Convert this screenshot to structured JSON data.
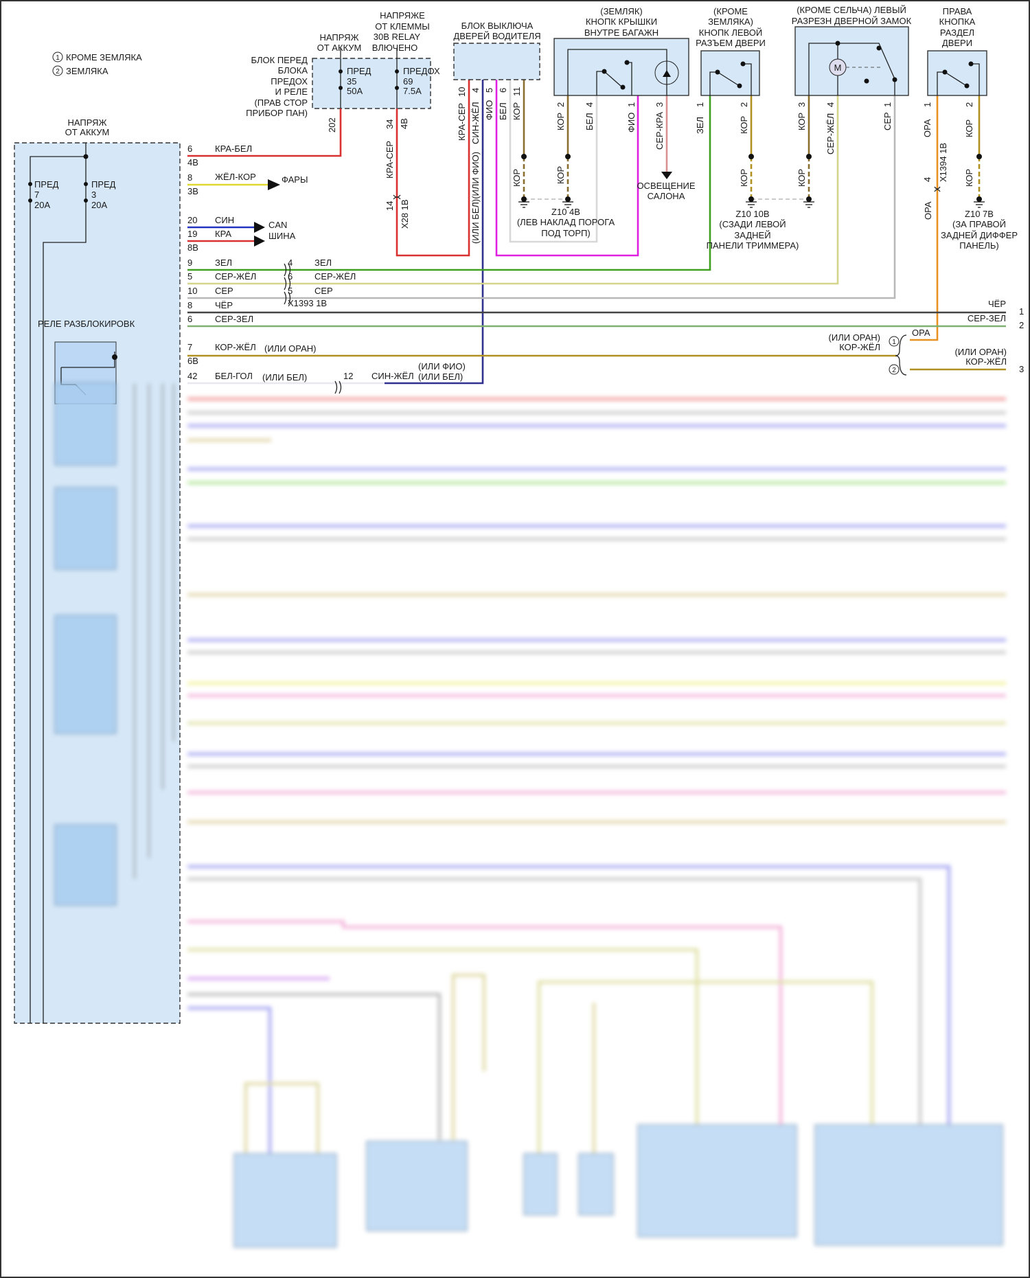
{
  "legend": {
    "n1": "1",
    "note1": "КРОМЕ ЗЕМЛЯКА",
    "n2": "2",
    "note2": "ЗЕМЛЯКА"
  },
  "battery_feed": [
    "НАПРЯЖ",
    "ОТ АККУМ"
  ],
  "body_module": {
    "fuse_a": [
      "ПРЕД",
      "7",
      "20А"
    ],
    "fuse_b": [
      "ПРЕД",
      "3",
      "20А"
    ],
    "relay_title": "РЕЛЕ РАЗБЛОКИРОВК"
  },
  "fuse_block": {
    "label": [
      "БЛОК ПЕРЕД",
      "БЛОКА",
      "ПРЕДОХ",
      "И РЕЛЕ",
      "(ПРАВ СТОР",
      "ПРИБОР ПАН)"
    ],
    "feed1": [
      "НАПРЯЖ",
      "ОТ АККУМ"
    ],
    "feed2": [
      "НАПРЯЖЕ",
      "ОТ КЛЕММЫ",
      "30В RELAY",
      "ВЛЮЧЕНО"
    ],
    "fuse1": [
      "ПРЕД",
      "35",
      "50А"
    ],
    "fuse2": [
      "ПРЕДОХ",
      "69",
      "7.5А"
    ],
    "pin1": "202",
    "pin2": "34",
    "pin2b": "4В",
    "wire2": "КРА-СЕР",
    "conn_pin": "14",
    "conn_name": "X28 1В"
  },
  "driver_switch": {
    "title": [
      "БЛОК ВЫКЛЮЧА",
      "ДВЕРЕЙ ВОДИТЕЛЯ"
    ],
    "pins": [
      {
        "num": "10",
        "wire": "КРА-СЕР"
      },
      {
        "num": "4",
        "wire": "СИН-ЖЁЛ"
      },
      {
        "num": "5",
        "wire": "ФИО"
      },
      {
        "num": "6",
        "wire": "БЕЛ"
      },
      {
        "num": "11",
        "wire": "КОР"
      }
    ],
    "alt_note": "(ИЛИ БЕЛ)(ИЛИ ФИО)",
    "ground_wire": "КОР"
  },
  "ground_z10_4b": [
    "Z10 4В",
    "(ЛЕВ НАКЛАД ПОРОГА",
    "ПОД ТОРП)"
  ],
  "trunk_button": {
    "title": [
      "(ЗЕМЛЯК)",
      "КНОПК КРЫШКИ",
      "ВНУТРЕ БАГАЖН"
    ],
    "pins": [
      {
        "num": "2",
        "wire": "КОР"
      },
      {
        "num": "4",
        "wire": "БЕЛ"
      },
      {
        "num": "1",
        "wire": "ФИО"
      },
      {
        "num": "3",
        "wire": "СЕР-КРА"
      }
    ],
    "ground_wire": "КОР",
    "lamp": [
      "ОСВЕЩЕНИЕ",
      "САЛОНА"
    ]
  },
  "left_door_button": {
    "title": [
      "(КРОМЕ",
      "ЗЕМЛЯКА)",
      "КНОПК ЛЕВОЙ",
      "РАЗЪЕМ ДВЕРИ"
    ],
    "pins": [
      {
        "num": "1",
        "wire": "ЗЕЛ"
      },
      {
        "num": "2",
        "wire": "КОР"
      }
    ],
    "ground_wire": "КОР"
  },
  "ground_z10_10b": [
    "Z10 10В",
    "(СЗАДИ ЛЕВОЙ",
    "ЗАДНЕЙ",
    "ПАНЕЛИ ТРИММЕРА)"
  ],
  "door_lock": {
    "title": [
      "(КРОМЕ СЕЛЬЧА) ЛЕВЫЙ",
      "РАЗРЕЗН ДВЕРНОЙ ЗАМОК"
    ],
    "motor": "M",
    "pins": [
      {
        "num": "3",
        "wire": "КОР"
      },
      {
        "num": "4",
        "wire": "СЕР-ЖЁЛ"
      },
      {
        "num": "1",
        "wire": "СЕР"
      }
    ],
    "ground_wire": "КОР"
  },
  "right_door_button": {
    "title": [
      "ПРАВА",
      "КНОПКА",
      "РАЗДЕЛ",
      "ДВЕРИ"
    ],
    "pins": [
      {
        "num": "1",
        "wire": "ОРА"
      },
      {
        "num": "2",
        "wire": "КОР"
      }
    ],
    "ground_wire": "КОР",
    "conn_pin": "4",
    "conn_name": "X1394 1В",
    "wire_below": "ОРА"
  },
  "ground_z10_7b": [
    "Z10 7В",
    "(ЗА ПРАВОЙ",
    "ЗАДНЕЙ ДИФФЕР",
    "ПАНЕЛЬ)"
  ],
  "rows": {
    "r1": {
      "pin": "6",
      "pin2": "4В",
      "wire": "КРА-БЕЛ"
    },
    "r2": {
      "pin": "8",
      "pin2": "3В",
      "wire": "ЖЁЛ-КОР",
      "dest": "ФАРЫ"
    },
    "r3": {
      "pin": "20",
      "wire": "СИН"
    },
    "r4": {
      "pin": "19",
      "pin2": "8В",
      "wire": "КРА"
    },
    "can": [
      "CAN",
      "ШИНА"
    ],
    "r5": {
      "pin": "9",
      "wire": "ЗЕЛ",
      "pin_b": "4",
      "wire_b": "ЗЕЛ"
    },
    "r6": {
      "pin": "5",
      "wire": "СЕР-ЖЁЛ",
      "pin_b": "6",
      "wire_b": "СЕР-ЖЁЛ"
    },
    "r7": {
      "pin": "10",
      "wire": "СЕР",
      "pin_b": "5",
      "wire_b": "СЕР"
    },
    "r8": {
      "pin": "8",
      "wire": "ЧЁР",
      "conn": "X1393 1В",
      "end_wire": "ЧЁР",
      "end_num": "1"
    },
    "r9": {
      "pin": "6",
      "wire": "СЕР-ЗЕЛ",
      "end_wire": "СЕР-ЗЕЛ",
      "end_num": "2"
    },
    "r10": {
      "pin": "7",
      "pin2": "6В",
      "wire": "КОР-ЖЁЛ",
      "alt": "(ИЛИ ОРАН)",
      "opt1_alt": "(ИЛИ ОРАН)",
      "opt1_wire": "КОР-ЖЁЛ",
      "opt1": "1",
      "opt1_ora": "ОРА",
      "opt2": "2",
      "opt2_alt": "(ИЛИ ОРАН)",
      "opt2_wire": "КОР-ЖЁЛ",
      "end_num": "3"
    },
    "r11": {
      "pin": "42",
      "wire": "БЕЛ-ГОЛ",
      "alt": "(ИЛИ БЕЛ)",
      "pin_b": "12",
      "wire_b": "СИН-ЖЁЛ",
      "alt_b1": "(ИЛИ ФИО)",
      "alt_b2": "(ИЛИ БЕЛ)"
    }
  },
  "colors": {
    "module_fill": "#d6e8f8",
    "red": "#d93030",
    "yellow": "#e0d830",
    "blue": "#2233c0",
    "navy": "#303090",
    "magenta": "#e020e0",
    "green": "#3fa020",
    "grey_yellow": "#d4d48c",
    "grey": "#b8b8b8",
    "black": "#444444",
    "grey_green": "#80b070",
    "brown_yellow": "#b09020",
    "orange": "#e89020",
    "brown": "#8a7030"
  }
}
